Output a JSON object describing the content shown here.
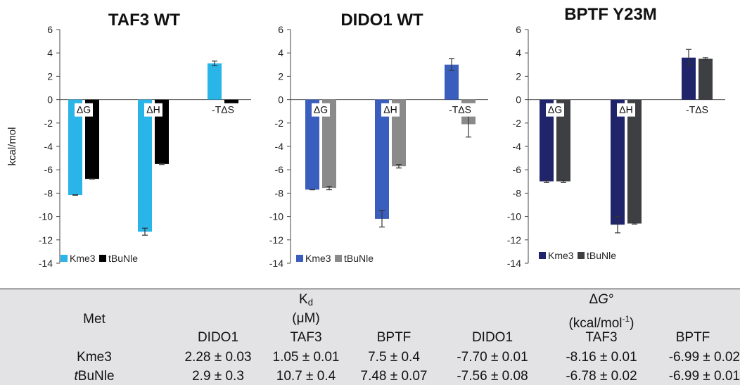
{
  "chart_data": [
    {
      "type": "bar",
      "title": "TAF3 WT",
      "ylabel": "kcal/mol",
      "ylim": [
        -14,
        6
      ],
      "yticks": [
        6,
        4,
        2,
        0,
        -2,
        -4,
        -6,
        -8,
        -10,
        -12,
        -14
      ],
      "categories": [
        "ΔG",
        "ΔH",
        "-TΔS"
      ],
      "series": [
        {
          "name": "Kme3",
          "color": "#29b5e8",
          "values": [
            -8.16,
            -11.3,
            3.1
          ],
          "errors": [
            0.02,
            0.3,
            0.2
          ]
        },
        {
          "name": "tBuNle",
          "color": "#000000",
          "values": [
            -6.78,
            -5.5,
            -1.2
          ],
          "errors": [
            0.02,
            0.05,
            0.05
          ]
        }
      ],
      "legend": "bottom-left",
      "grid": false
    },
    {
      "type": "bar",
      "title": "DIDO1 WT",
      "ylim": [
        -14,
        6
      ],
      "yticks": [
        6,
        4,
        2,
        0,
        -2,
        -4,
        -6,
        -8,
        -10,
        -12,
        -14
      ],
      "categories": [
        "ΔG",
        "ΔH",
        "-TΔS"
      ],
      "series": [
        {
          "name": "Kme3",
          "color": "#3a5ebd",
          "values": [
            -7.7,
            -10.2,
            3.0
          ],
          "errors": [
            0.01,
            0.7,
            0.5
          ]
        },
        {
          "name": "tBuNle",
          "color": "#8a8a8a",
          "values": [
            -7.56,
            -5.7,
            -2.1
          ],
          "errors": [
            0.15,
            0.15,
            1.1
          ]
        }
      ],
      "legend": "bottom-left",
      "grid": false
    },
    {
      "type": "bar",
      "title": "BPTF Y23M",
      "ylim": [
        -14,
        6
      ],
      "yticks": [
        6,
        4,
        2,
        0,
        -2,
        -4,
        -6,
        -8,
        -10,
        -12,
        -14
      ],
      "categories": [
        "ΔG",
        "ΔH",
        "-TΔS"
      ],
      "series": [
        {
          "name": "Kme3",
          "color": "#20246b",
          "values": [
            -6.99,
            -10.7,
            3.6
          ],
          "errors": [
            0.1,
            0.7,
            0.7
          ]
        },
        {
          "name": "tBuNle",
          "color": "#3d3f42",
          "values": [
            -6.99,
            -10.6,
            3.5
          ],
          "errors": [
            0.1,
            0.05,
            0.1
          ]
        }
      ],
      "legend": "bottom-left",
      "grid": false
    }
  ],
  "table": {
    "met_label": "Met",
    "kd_symbol": "K",
    "kd_sub": "d",
    "kd_unit": "(μM)",
    "dg_symbol": "Δ",
    "dg_italic": "G",
    "dg_degree": "°",
    "dg_unit_text": "(kcal/mol",
    "dg_unit_sup": "-1",
    "dg_unit_close": ")",
    "columns": [
      "DIDO1",
      "TAF3",
      "BPTF",
      "DIDO1",
      "TAF3",
      "BPTF"
    ],
    "rows": [
      {
        "label_italic": "",
        "label_rest": "Kme3",
        "cells": [
          "2.28 ± 0.03",
          "1.05 ± 0.01",
          "7.5 ± 0.4",
          "-7.70 ± 0.01",
          "-8.16 ± 0.01",
          "-6.99 ± 0.02"
        ]
      },
      {
        "label_italic": "t",
        "label_rest": "BuNle",
        "cells": [
          "2.9 ± 0.3",
          "10.7 ± 0.4",
          "7.48 ± 0.07",
          "-7.56 ± 0.08",
          "-6.78 ± 0.02",
          "-6.99 ± 0.01"
        ]
      }
    ]
  }
}
